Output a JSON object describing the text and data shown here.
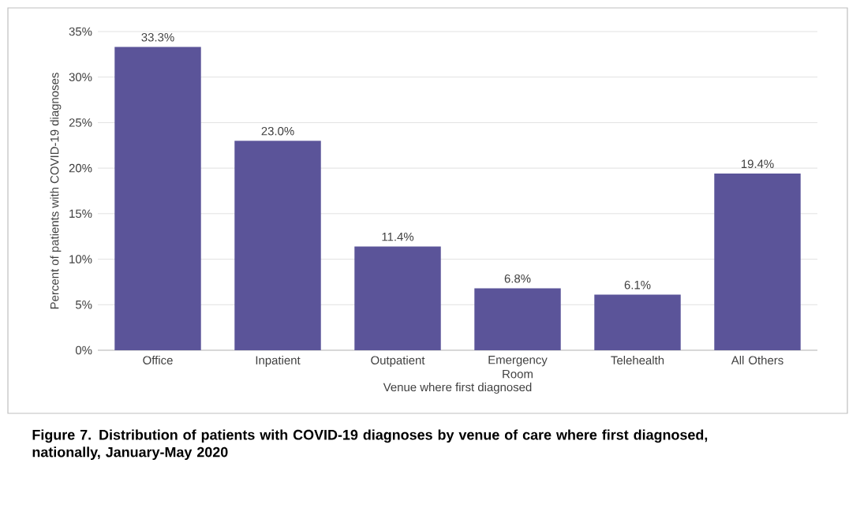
{
  "chart_data": {
    "type": "bar",
    "title": "Figure 7. Distribution of patients with COVID-19 diagnoses by venue of care where first diagnosed, nationally, January-May 2020",
    "xlabel": "Venue where first diagnosed",
    "ylabel": "Percent of patients with COVID-19 diagnoses",
    "categories": [
      "Office",
      "Inpatient",
      "Outpatient",
      "Emergency Room",
      "Telehealth",
      "All Others"
    ],
    "values": [
      33.3,
      23.0,
      11.4,
      6.8,
      6.1,
      19.4
    ],
    "value_labels": [
      "33.3%",
      "23.0%",
      "11.4%",
      "6.8%",
      "6.1%",
      "19.4%"
    ],
    "color": "#5b5499",
    "ylim": [
      0,
      35
    ],
    "yticks": [
      {
        "value": 0,
        "label": "0%"
      },
      {
        "value": 5,
        "label": "5%"
      },
      {
        "value": 10,
        "label": "10%"
      },
      {
        "value": 15,
        "label": "15%"
      },
      {
        "value": 20,
        "label": "20%"
      },
      {
        "value": 25,
        "label": "25%"
      },
      {
        "value": 30,
        "label": "30%"
      },
      {
        "value": 35,
        "label": "35%"
      }
    ],
    "grid": "y"
  }
}
